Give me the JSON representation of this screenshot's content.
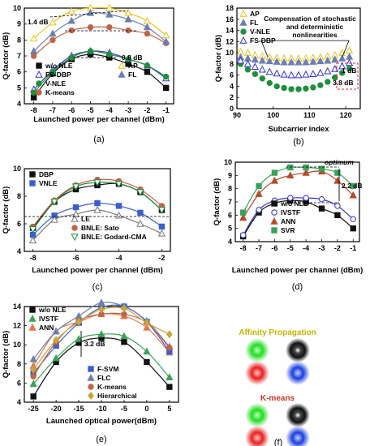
{
  "chart_data": [
    {
      "id": "a",
      "panel_label": "(a)",
      "type": "line",
      "xlabel": "Launched power per channel (dBm)",
      "ylabel": "Q-factor (dB)",
      "xlim": [
        -8.5,
        -0.6
      ],
      "ylim": [
        4,
        10
      ],
      "xticks": [
        -8,
        -7,
        -6,
        -5,
        -4,
        -3,
        -2,
        -1
      ],
      "yticks": [
        4,
        5,
        6,
        7,
        8,
        9,
        10
      ],
      "series": [
        {
          "name": "w/o NLE",
          "marker": "square",
          "color": "#111111",
          "x": [
            -8,
            -7,
            -6,
            -5,
            -4,
            -3,
            -2,
            -1
          ],
          "y": [
            4.4,
            5.9,
            6.8,
            7.1,
            6.9,
            6.5,
            6.0,
            5.0
          ]
        },
        {
          "name": "FS-DBP",
          "marker": "triangle-open",
          "color": "#3333cc",
          "x": [
            -8,
            -7,
            -6,
            -5,
            -4,
            -3,
            -2,
            -1
          ],
          "y": [
            4.9,
            6.1,
            7.0,
            7.3,
            7.2,
            6.8,
            6.4,
            5.6
          ]
        },
        {
          "name": "V-NLE",
          "marker": "circle",
          "color": "#1e8f3a",
          "x": [
            -8,
            -7,
            -6,
            -5,
            -4,
            -3,
            -2,
            -1
          ],
          "y": [
            4.7,
            6.0,
            6.9,
            7.3,
            7.1,
            6.8,
            6.4,
            5.7
          ]
        },
        {
          "name": "K-means",
          "marker": "circle",
          "color": "#c06448",
          "x": [
            -8,
            -7,
            -6,
            -5,
            -4,
            -3,
            -2,
            -1
          ],
          "y": [
            7.0,
            8.0,
            8.6,
            8.8,
            8.8,
            8.6,
            8.4,
            7.8
          ]
        },
        {
          "name": "AP",
          "marker": "triangle-open",
          "color": "#e8c21a",
          "x": [
            -8,
            -7,
            -6,
            -5,
            -4,
            -3,
            -2,
            -1
          ],
          "y": [
            8.1,
            9.1,
            9.8,
            10.0,
            10.0,
            9.7,
            9.2,
            8.3
          ]
        },
        {
          "name": "FL",
          "marker": "triangle",
          "color": "#6c7fb0",
          "x": [
            -8,
            -7,
            -6,
            -5,
            -4,
            -3,
            -2,
            -1
          ],
          "y": [
            7.3,
            8.4,
            9.2,
            9.7,
            9.6,
            9.3,
            8.8,
            7.9
          ]
        }
      ],
      "annotations": [
        "1.4 dB",
        "0.8 dB"
      ]
    },
    {
      "id": "b",
      "panel_label": "(b)",
      "type": "scatter",
      "xlabel": "Subcarrier index",
      "ylabel": "Q-factor (dB)",
      "xlim": [
        90,
        124
      ],
      "ylim": [
        0,
        18
      ],
      "xticks": [
        90,
        100,
        110,
        120
      ],
      "yticks": [
        0,
        2,
        4,
        6,
        8,
        10,
        12,
        14,
        16,
        18
      ],
      "series": [
        {
          "name": "AP",
          "marker": "triangle-open",
          "color": "#e8c21a",
          "x": [
            91,
            93,
            95,
            97,
            99,
            101,
            103,
            105,
            107,
            109,
            111,
            113,
            115,
            117,
            119,
            121
          ],
          "y": [
            10.2,
            10.0,
            9.6,
            9.4,
            9.2,
            9.1,
            9.0,
            9.0,
            9.0,
            9.0,
            9.1,
            9.2,
            9.4,
            9.6,
            10.0,
            10.4
          ]
        },
        {
          "name": "FL",
          "marker": "triangle",
          "color": "#6c7fb0",
          "x": [
            91,
            93,
            95,
            97,
            99,
            101,
            103,
            105,
            107,
            109,
            111,
            113,
            115,
            117,
            119,
            121
          ],
          "y": [
            9.2,
            9.0,
            8.8,
            8.6,
            8.5,
            8.4,
            8.3,
            8.3,
            8.3,
            8.3,
            8.4,
            8.5,
            8.6,
            8.8,
            9.0,
            9.3
          ]
        },
        {
          "name": "V-NLE",
          "marker": "circle",
          "color": "#1e8f3a",
          "x": [
            91,
            93,
            95,
            97,
            99,
            101,
            103,
            105,
            107,
            109,
            111,
            113,
            115,
            117,
            119,
            121
          ],
          "y": [
            8.0,
            7.0,
            6.2,
            5.4,
            4.6,
            4.0,
            3.7,
            3.5,
            3.5,
            3.6,
            3.8,
            4.2,
            4.8,
            5.6,
            6.4,
            7.2
          ]
        },
        {
          "name": "FS-DBP",
          "marker": "triangle-open",
          "color": "#3333cc",
          "x": [
            91,
            93,
            95,
            97,
            99,
            101,
            103,
            105,
            107,
            109,
            111,
            113,
            115,
            117,
            119,
            121
          ],
          "y": [
            8.6,
            8.0,
            7.5,
            7.0,
            6.6,
            6.3,
            6.1,
            6.0,
            6.0,
            6.1,
            6.2,
            6.4,
            6.7,
            7.1,
            7.6,
            8.2
          ]
        }
      ],
      "annotations": [
        "Compensation of stochastic",
        "and deterministic",
        "nonlinearities",
        "1 dB",
        "3.8 dB"
      ]
    },
    {
      "id": "c",
      "panel_label": "(c)",
      "type": "line",
      "xlabel": "Launched power per channel (dBm)",
      "ylabel": "Q-factor (dB)",
      "xlim": [
        -8.4,
        -1.6
      ],
      "ylim": [
        4,
        10
      ],
      "xticks": [
        -8,
        -6,
        -4,
        -2
      ],
      "yticks": [
        4,
        6,
        8,
        10
      ],
      "series": [
        {
          "name": "DBP",
          "marker": "square",
          "color": "#111111",
          "x": [
            -8,
            -7,
            -6,
            -5,
            -4,
            -3,
            -2
          ],
          "y": [
            5.7,
            7.6,
            8.5,
            8.8,
            8.9,
            8.3,
            7.0
          ]
        },
        {
          "name": "VNLE",
          "marker": "square",
          "color": "#3a5fcd",
          "x": [
            -8,
            -7,
            -6,
            -5,
            -4,
            -3,
            -2
          ],
          "y": [
            5.2,
            6.6,
            7.2,
            7.5,
            7.3,
            6.8,
            5.8
          ]
        },
        {
          "name": "LE",
          "marker": "triangle-open",
          "color": "#777777",
          "x": [
            -8,
            -7,
            -6,
            -5,
            -4,
            -3,
            -2
          ],
          "y": [
            4.8,
            6.3,
            6.7,
            7.0,
            6.6,
            6.0,
            5.3
          ]
        },
        {
          "name": "BNLE: Sato",
          "marker": "circle",
          "color": "#c06448",
          "x": [
            -8,
            -7,
            -6,
            -5,
            -4,
            -3,
            -2
          ],
          "y": [
            5.8,
            7.7,
            8.8,
            9.2,
            9.1,
            8.5,
            7.3
          ]
        },
        {
          "name": "BNLE: Godard-CMA",
          "marker": "triangle-down-open",
          "color": "#1e8f3a",
          "x": [
            -8,
            -7,
            -6,
            -5,
            -4,
            -3,
            -2
          ],
          "y": [
            5.6,
            7.6,
            8.7,
            9.0,
            8.9,
            8.3,
            7.0
          ]
        }
      ]
    },
    {
      "id": "d",
      "panel_label": "(d)",
      "type": "line",
      "xlabel": "Launched power per channel (dBm)",
      "ylabel": "Q-factor (dB)",
      "xlim": [
        -8.5,
        -0.6
      ],
      "ylim": [
        4,
        10
      ],
      "xticks": [
        -8,
        -7,
        -6,
        -5,
        -4,
        -3,
        -2,
        -1
      ],
      "yticks": [
        4,
        5,
        6,
        7,
        8,
        9,
        10
      ],
      "series": [
        {
          "name": "w/o NLE",
          "marker": "square",
          "color": "#111111",
          "x": [
            -8,
            -7,
            -6,
            -5,
            -4,
            -3,
            -2,
            -1
          ],
          "y": [
            4.4,
            6.2,
            6.9,
            7.1,
            7.0,
            6.5,
            6.0,
            5.0
          ]
        },
        {
          "name": "IVSTF",
          "marker": "circle-open",
          "color": "#3333cc",
          "x": [
            -8,
            -7,
            -6,
            -5,
            -4,
            -3,
            -2,
            -1
          ],
          "y": [
            4.5,
            6.4,
            7.1,
            7.3,
            7.3,
            7.2,
            6.7,
            5.7
          ]
        },
        {
          "name": "ANN",
          "marker": "triangle",
          "color": "#b84a2a",
          "x": [
            -8,
            -7,
            -6,
            -5,
            -4,
            -3,
            -2,
            -1
          ],
          "y": [
            5.8,
            7.6,
            8.6,
            9.0,
            9.2,
            9.3,
            8.6,
            7.5
          ]
        },
        {
          "name": "SVR",
          "marker": "square",
          "color": "#3aa35a",
          "x": [
            -8,
            -7,
            -6,
            -5,
            -4,
            -3,
            -2,
            -1
          ],
          "y": [
            6.2,
            8.2,
            9.2,
            9.6,
            9.6,
            9.5,
            9.2,
            8.2
          ]
        }
      ],
      "annotations": [
        "optimum",
        "2.2 dB"
      ]
    },
    {
      "id": "e",
      "panel_label": "(e)",
      "type": "line",
      "xlabel": "Launched optical power(dBm)",
      "ylabel": "Q-factor (dB)",
      "xlim": [
        -27,
        7
      ],
      "ylim": [
        4,
        14
      ],
      "xticks": [
        -25,
        -20,
        -15,
        -10,
        -5,
        0,
        5
      ],
      "yticks": [
        4,
        6,
        8,
        10,
        12,
        14
      ],
      "series": [
        {
          "name": "w/o NLE",
          "marker": "square",
          "color": "#111111",
          "x": [
            -25,
            -20,
            -15,
            -10,
            -5,
            0,
            5
          ],
          "y": [
            4.6,
            8.2,
            10.2,
            10.7,
            10.3,
            8.2,
            5.6
          ]
        },
        {
          "name": "IVSTF",
          "marker": "triangle",
          "color": "#3aa35a",
          "x": [
            -25,
            -20,
            -15,
            -10,
            -5,
            0,
            5
          ],
          "y": [
            5.9,
            8.6,
            10.6,
            11.1,
            10.9,
            9.3,
            6.6
          ]
        },
        {
          "name": "ANN",
          "marker": "triangle",
          "color": "#e0784a",
          "x": [
            -25,
            -20,
            -15,
            -10,
            -5,
            0,
            5
          ],
          "y": [
            7.8,
            11.4,
            12.4,
            13.2,
            13.0,
            11.8,
            9.2
          ]
        },
        {
          "name": "F-SVM",
          "marker": "square",
          "color": "#3a5fcd",
          "x": [
            -25,
            -20,
            -15,
            -10,
            -5,
            0,
            5
          ],
          "y": [
            7.0,
            9.9,
            12.3,
            13.9,
            14.0,
            12.4,
            9.3
          ]
        },
        {
          "name": "FLC",
          "marker": "triangle",
          "color": "#6c7fb0",
          "x": [
            -25,
            -20,
            -15,
            -10,
            -5,
            0,
            5
          ],
          "y": [
            8.5,
            11.4,
            13.0,
            14.4,
            14.0,
            12.5,
            9.8
          ]
        },
        {
          "name": "K-means",
          "marker": "circle",
          "color": "#c06448",
          "x": [
            -25,
            -20,
            -15,
            -10,
            -5,
            0,
            5
          ],
          "y": [
            6.7,
            10.3,
            12.5,
            13.2,
            13.2,
            12.3,
            9.7
          ]
        },
        {
          "name": "Hierarchical",
          "marker": "diamond",
          "color": "#c9a43a",
          "x": [
            -25,
            -20,
            -15,
            -10,
            -5,
            0,
            5
          ],
          "y": [
            7.4,
            10.5,
            12.4,
            13.7,
            13.8,
            12.3,
            11.1
          ]
        }
      ],
      "annotations": [
        "3.2 dB"
      ]
    }
  ],
  "panel_f": {
    "panel_label": "(f)",
    "title_ap": "Affinity Propagation",
    "title_km": "K-means",
    "title_ap_color": "#c8b400",
    "title_km_color": "#c0392b",
    "cluster_colors": [
      "#22dd22",
      "#111111",
      "#e82020",
      "#1a3fe0"
    ]
  }
}
